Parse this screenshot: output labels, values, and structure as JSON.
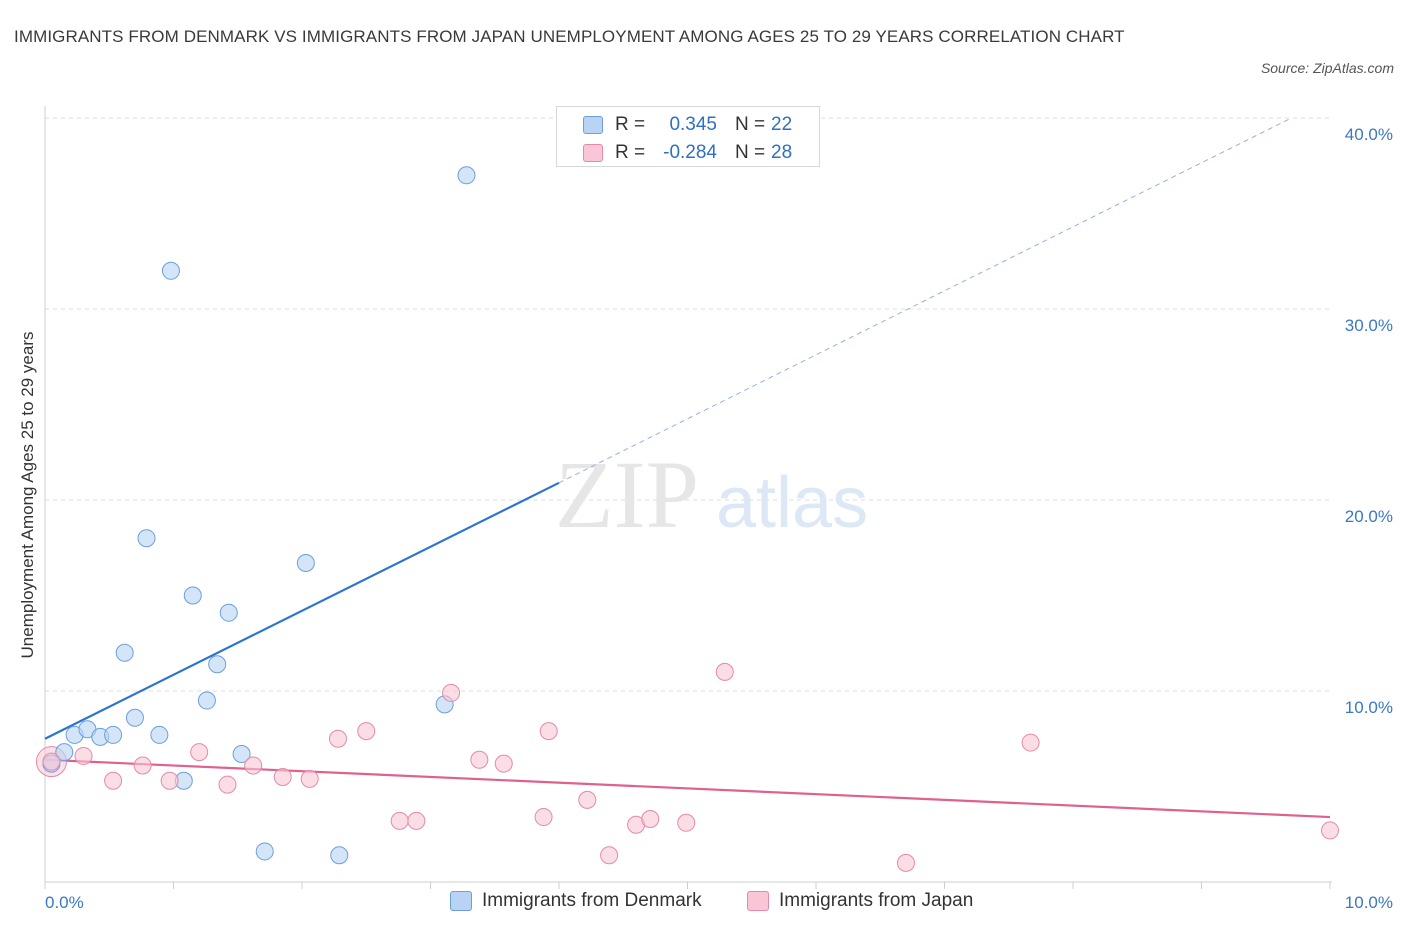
{
  "title": "IMMIGRANTS FROM DENMARK VS IMMIGRANTS FROM JAPAN UNEMPLOYMENT AMONG AGES 25 TO 29 YEARS CORRELATION CHART",
  "source": "Source: ZipAtlas.com",
  "watermark": {
    "zip": "ZIP",
    "atlas": "atlas"
  },
  "colors": {
    "denmark_fill": "#b8d3f4",
    "denmark_stroke": "#6c9fdc",
    "denmark_line": "#2a74d0",
    "japan_fill": "#f8c6d6",
    "japan_stroke": "#e58aa8",
    "japan_line": "#e0608e",
    "grid": "#dcdcdc",
    "tick_text": "#3a78c8"
  },
  "legend": {
    "rows": [
      {
        "r_label": "R =",
        "r_value": "0.345",
        "n_label": "N =",
        "n_value": "22"
      },
      {
        "r_label": "R =",
        "r_value": "-0.284",
        "n_label": "N =",
        "n_value": "28"
      }
    ]
  },
  "chart_data": {
    "type": "scatter",
    "title": "IMMIGRANTS FROM DENMARK VS IMMIGRANTS FROM JAPAN UNEMPLOYMENT AMONG AGES 25 TO 29 YEARS CORRELATION CHART",
    "xlabel": "",
    "ylabel": "Unemployment Among Ages 25 to 29 years",
    "xlim": [
      0,
      10
    ],
    "ylim": [
      0,
      40
    ],
    "x_tick_labels": [
      "0.0%",
      "10.0%"
    ],
    "y_ticks": [
      10,
      20,
      30,
      40
    ],
    "y_tick_labels": [
      "10.0%",
      "20.0%",
      "30.0%",
      "40.0%"
    ],
    "grid": true,
    "series": [
      {
        "name": "Immigrants from Denmark",
        "r": 0.345,
        "n": 22,
        "points": [
          {
            "x": 0.05,
            "y": 6.2
          },
          {
            "x": 0.15,
            "y": 6.8
          },
          {
            "x": 0.23,
            "y": 7.7
          },
          {
            "x": 0.33,
            "y": 8.0
          },
          {
            "x": 0.43,
            "y": 7.6
          },
          {
            "x": 0.53,
            "y": 7.7
          },
          {
            "x": 0.62,
            "y": 12.0
          },
          {
            "x": 0.7,
            "y": 8.6
          },
          {
            "x": 0.79,
            "y": 18.0
          },
          {
            "x": 0.89,
            "y": 7.7
          },
          {
            "x": 0.98,
            "y": 32.0
          },
          {
            "x": 1.08,
            "y": 5.3
          },
          {
            "x": 1.15,
            "y": 15.0
          },
          {
            "x": 1.26,
            "y": 9.5
          },
          {
            "x": 1.34,
            "y": 11.4
          },
          {
            "x": 1.43,
            "y": 14.1
          },
          {
            "x": 1.53,
            "y": 6.7
          },
          {
            "x": 1.71,
            "y": 1.6
          },
          {
            "x": 2.03,
            "y": 16.7
          },
          {
            "x": 2.29,
            "y": 1.4
          },
          {
            "x": 3.11,
            "y": 9.3
          },
          {
            "x": 3.28,
            "y": 37.0
          }
        ],
        "trend": {
          "x0": 0.0,
          "y0": 7.5,
          "x1": 4.0,
          "y1": 20.9,
          "dashed_to_x": 9.7,
          "dashed_to_y": 40.0
        }
      },
      {
        "name": "Immigrants from Japan",
        "r": -0.284,
        "n": 28,
        "points": [
          {
            "x": 0.05,
            "y": 6.3
          },
          {
            "x": 0.3,
            "y": 6.6
          },
          {
            "x": 0.53,
            "y": 5.3
          },
          {
            "x": 0.76,
            "y": 6.1
          },
          {
            "x": 0.97,
            "y": 5.3
          },
          {
            "x": 1.2,
            "y": 6.8
          },
          {
            "x": 1.42,
            "y": 5.1
          },
          {
            "x": 1.62,
            "y": 6.1
          },
          {
            "x": 1.85,
            "y": 5.5
          },
          {
            "x": 2.06,
            "y": 5.4
          },
          {
            "x": 2.28,
            "y": 7.5
          },
          {
            "x": 2.5,
            "y": 7.9
          },
          {
            "x": 2.76,
            "y": 3.2
          },
          {
            "x": 2.89,
            "y": 3.2
          },
          {
            "x": 3.16,
            "y": 9.9
          },
          {
            "x": 3.38,
            "y": 6.4
          },
          {
            "x": 3.57,
            "y": 6.2
          },
          {
            "x": 3.88,
            "y": 3.4
          },
          {
            "x": 3.92,
            "y": 7.9
          },
          {
            "x": 4.22,
            "y": 4.3
          },
          {
            "x": 4.39,
            "y": 1.4
          },
          {
            "x": 4.6,
            "y": 3.0
          },
          {
            "x": 4.71,
            "y": 3.3
          },
          {
            "x": 4.99,
            "y": 3.1
          },
          {
            "x": 5.29,
            "y": 11.0
          },
          {
            "x": 6.7,
            "y": 1.0
          },
          {
            "x": 7.67,
            "y": 7.3
          },
          {
            "x": 10.0,
            "y": 2.7
          }
        ],
        "trend": {
          "x0": 0.0,
          "y0": 6.4,
          "x1": 10.0,
          "y1": 3.4
        }
      }
    ]
  }
}
